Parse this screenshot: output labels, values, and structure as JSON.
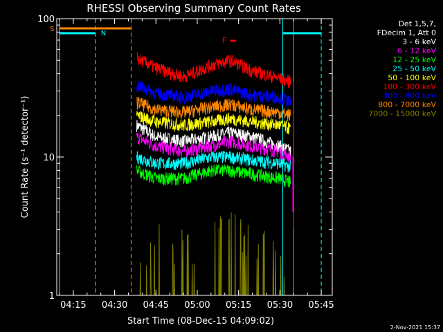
{
  "chart_data": {
    "type": "line",
    "title": "RHESSI Observing Summary Count Rates",
    "xlabel": "Start Time (08-Dec-15 04:09:02)",
    "ylabel": "Count Rate (s⁻¹ detector⁻¹)",
    "y_scale": "log",
    "ylim": [
      1,
      100
    ],
    "xlim": [
      "04:09",
      "05:49"
    ],
    "x_ticks": [
      "04:15",
      "04:30",
      "04:45",
      "05:00",
      "05:15",
      "05:30",
      "05:45"
    ],
    "y_ticks": [
      "1",
      "10",
      "100"
    ],
    "legend": {
      "placement": "top-right",
      "header": [
        "Det 1,5,7,",
        "FDecim 1, Att 0"
      ]
    },
    "series": [
      {
        "name": "3 - 6 keV",
        "color": "#ffffff",
        "x": [
          "04:38",
          "04:45",
          "04:55",
          "05:05",
          "05:12",
          "05:20",
          "05:30",
          "05:34"
        ],
        "values": [
          17,
          14,
          13,
          14,
          15,
          14,
          12,
          11
        ]
      },
      {
        "name": "6 - 12 keV",
        "color": "#ff00ff",
        "x": [
          "04:38",
          "04:45",
          "04:55",
          "05:05",
          "05:12",
          "05:20",
          "05:30",
          "05:34"
        ],
        "values": [
          14,
          12,
          11,
          12,
          13,
          12,
          11,
          10
        ]
      },
      {
        "name": "12 - 25 keV",
        "color": "#00ff00",
        "x": [
          "04:38",
          "04:45",
          "04:55",
          "05:05",
          "05:12",
          "05:20",
          "05:30",
          "05:34"
        ],
        "values": [
          8,
          7,
          7,
          8,
          8,
          7.5,
          7,
          6.5
        ]
      },
      {
        "name": "25 - 50 keV",
        "color": "#00ffff",
        "x": [
          "04:38",
          "04:45",
          "04:55",
          "05:05",
          "05:12",
          "05:20",
          "05:30",
          "05:34"
        ],
        "values": [
          10,
          9,
          9,
          10,
          10,
          9.5,
          9,
          8.5
        ]
      },
      {
        "name": "50 - 100 keV",
        "color": "#ffff00",
        "x": [
          "04:38",
          "04:45",
          "04:55",
          "05:05",
          "05:12",
          "05:20",
          "05:30",
          "05:34"
        ],
        "values": [
          20,
          18,
          17,
          18,
          19,
          18,
          17,
          16
        ]
      },
      {
        "name": "100 - 300 keV",
        "color": "#ff0000",
        "x": [
          "04:38",
          "04:45",
          "04:55",
          "05:05",
          "05:12",
          "05:20",
          "05:30",
          "05:34"
        ],
        "values": [
          52,
          44,
          38,
          46,
          50,
          42,
          37,
          35
        ]
      },
      {
        "name": "300 - 800 keV",
        "color": "#0000ff",
        "x": [
          "04:38",
          "04:45",
          "04:55",
          "05:05",
          "05:12",
          "05:20",
          "05:30",
          "05:34"
        ],
        "values": [
          33,
          29,
          27,
          30,
          31,
          28,
          27,
          25
        ]
      },
      {
        "name": "800 - 7000 keV",
        "color": "#ff8800",
        "x": [
          "04:38",
          "04:45",
          "04:55",
          "05:05",
          "05:12",
          "05:20",
          "05:30",
          "05:34"
        ],
        "values": [
          25,
          22,
          21,
          23,
          24,
          22,
          21,
          20
        ]
      },
      {
        "name": "7000 - 15000 keV",
        "color": "#808000",
        "x": [
          "04:38",
          "04:45",
          "05:00",
          "05:07",
          "05:12",
          "05:17",
          "05:25",
          "05:34"
        ],
        "values": [
          1,
          1.8,
          1.5,
          2,
          2,
          1.8,
          1.5,
          1
        ]
      }
    ],
    "flags": {
      "S_label": "S",
      "N_label": "N",
      "F_label": "F"
    },
    "footer_date": "2-Nov-2021 15:37"
  }
}
